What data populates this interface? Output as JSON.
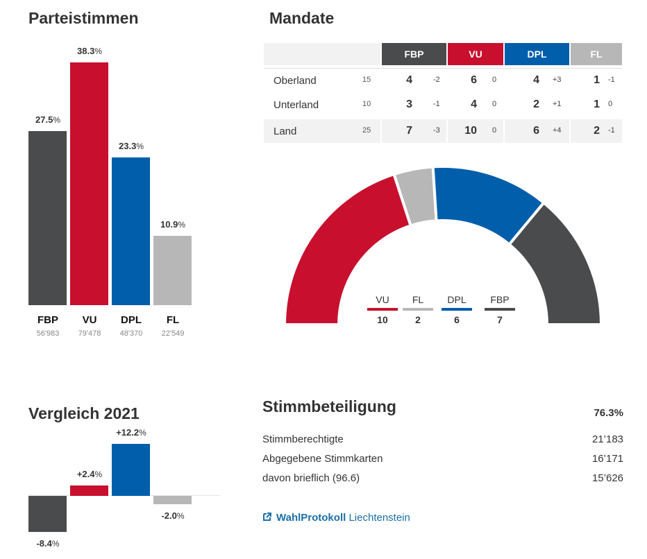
{
  "parteistimmen": {
    "title": "Parteistimmen",
    "unit": "%",
    "parties": [
      {
        "name": "FBP",
        "percent": "27.5",
        "votes": "56'983",
        "color": "#4a4b4d"
      },
      {
        "name": "VU",
        "percent": "38.3",
        "votes": "79'478",
        "color": "#c8102e"
      },
      {
        "name": "DPL",
        "percent": "23.3",
        "votes": "48'370",
        "color": "#005eab"
      },
      {
        "name": "FL",
        "percent": "10.9",
        "votes": "22'549",
        "color": "#b7b7b7"
      }
    ]
  },
  "mandate": {
    "title": "Mandate",
    "columns": [
      "FBP",
      "VU",
      "DPL",
      "FL"
    ],
    "rows": [
      {
        "name": "Oberland",
        "total": "15",
        "cells": [
          [
            "4",
            "-2"
          ],
          [
            "6",
            "0"
          ],
          [
            "4",
            "+3"
          ],
          [
            "1",
            "-1"
          ]
        ]
      },
      {
        "name": "Unterland",
        "total": "10",
        "cells": [
          [
            "3",
            "-1"
          ],
          [
            "4",
            "0"
          ],
          [
            "2",
            "+1"
          ],
          [
            "1",
            "0"
          ]
        ]
      },
      {
        "name": "Land",
        "total": "25",
        "cells": [
          [
            "7",
            "-3"
          ],
          [
            "10",
            "0"
          ],
          [
            "6",
            "+4"
          ],
          [
            "2",
            "-1"
          ]
        ]
      }
    ],
    "legend": [
      {
        "name": "VU",
        "value": "10",
        "color": "#c8102e"
      },
      {
        "name": "FL",
        "value": "2",
        "color": "#b7b7b7"
      },
      {
        "name": "DPL",
        "value": "6",
        "color": "#005eab"
      },
      {
        "name": "FBP",
        "value": "7",
        "color": "#4a4b4d"
      }
    ]
  },
  "vergleich": {
    "title": "Vergleich 2021",
    "items": [
      {
        "party": "FBP",
        "label": "-8.4",
        "value": -8.4
      },
      {
        "party": "VU",
        "label": "+2.4",
        "value": 2.4
      },
      {
        "party": "DPL",
        "label": "+12.2",
        "value": 12.2
      },
      {
        "party": "FL",
        "label": "-2.0",
        "value": -2.0
      }
    ],
    "unit": "%"
  },
  "stimmbeteiligung": {
    "title": "Stimmbeteiligung",
    "percent": "76.3%",
    "rows": [
      {
        "label": "Stimmberechtigte",
        "value": "21’183"
      },
      {
        "label": "Abgegebene Stimmkarten",
        "value": "16’171"
      },
      {
        "label": "davon brieflich (96.6)",
        "value": "15’626"
      }
    ]
  },
  "link": {
    "bold": "WahlProtokoll",
    "rest": "Liechtenstein",
    "icon": "external-link-icon"
  },
  "chart_data": [
    {
      "type": "bar",
      "title": "Parteistimmen",
      "categories": [
        "FBP",
        "VU",
        "DPL",
        "FL"
      ],
      "values": [
        27.5,
        38.3,
        23.3,
        10.9
      ],
      "votes": [
        56983,
        79478,
        48370,
        22549
      ],
      "ylabel": "%",
      "ylim": [
        0,
        38.3
      ]
    },
    {
      "type": "pie",
      "title": "Mandate",
      "categories": [
        "VU",
        "FL",
        "DPL",
        "FBP"
      ],
      "values": [
        10,
        2,
        6,
        7
      ],
      "shape": "half-donut"
    },
    {
      "type": "bar",
      "title": "Vergleich 2021",
      "categories": [
        "FBP",
        "VU",
        "DPL",
        "FL"
      ],
      "values": [
        -8.4,
        2.4,
        12.2,
        -2.0
      ],
      "ylabel": "%"
    }
  ]
}
